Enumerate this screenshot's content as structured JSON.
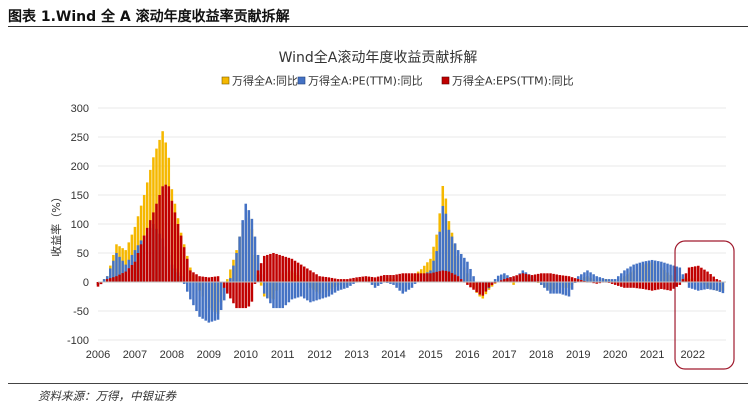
{
  "caption": "图表 1.Wind 全 A 滚动年度收益率贡献拆解",
  "source": "资料来源：万得，中银证券",
  "colors": {
    "total": "#F5B800",
    "pe": "#4472C4",
    "eps": "#C00000",
    "highlight": "#A01B2E"
  },
  "highlight_label": "2022",
  "chart_data": {
    "type": "bar",
    "title": "Wind全A滚动年度收益贡献拆解",
    "xlabel": "",
    "ylabel": "收益率（%）",
    "ylim": [
      -100,
      300
    ],
    "yticks": [
      300,
      250,
      200,
      150,
      100,
      50,
      0,
      -50,
      -100
    ],
    "x_start": 2006,
    "x_end": 2023,
    "xtick_years": [
      "2006",
      "2007",
      "2008",
      "2009",
      "2010",
      "2011",
      "2012",
      "2013",
      "2014",
      "2015",
      "2016",
      "2017",
      "2018",
      "2019",
      "2020",
      "2021"
    ],
    "legend": [
      "万得全A:同比",
      "万得全A:PE(TTM):同比",
      "万得全A:EPS(TTM):同比"
    ],
    "series_keys": [
      "total",
      "pe",
      "eps"
    ],
    "anchors": {
      "total": [
        [
          2006.0,
          -5
        ],
        [
          2006.25,
          10
        ],
        [
          2006.5,
          65
        ],
        [
          2006.75,
          55
        ],
        [
          2007.0,
          95
        ],
        [
          2007.25,
          150
        ],
        [
          2007.5,
          215
        ],
        [
          2007.75,
          260
        ],
        [
          2007.9,
          225
        ],
        [
          2008.0,
          160
        ],
        [
          2008.25,
          85
        ],
        [
          2008.5,
          25
        ],
        [
          2008.75,
          -15
        ],
        [
          2009.0,
          -45
        ],
        [
          2009.25,
          -55
        ],
        [
          2009.5,
          5
        ],
        [
          2009.75,
          55
        ],
        [
          2010.0,
          125
        ],
        [
          2010.15,
          100
        ],
        [
          2010.3,
          20
        ],
        [
          2010.5,
          -25
        ],
        [
          2010.75,
          -30
        ],
        [
          2011.0,
          15
        ],
        [
          2011.25,
          20
        ],
        [
          2011.5,
          8
        ],
        [
          2011.75,
          -10
        ],
        [
          2012.0,
          -20
        ],
        [
          2012.25,
          -15
        ],
        [
          2012.5,
          -5
        ],
        [
          2012.75,
          -5
        ],
        [
          2013.0,
          5
        ],
        [
          2013.25,
          8
        ],
        [
          2013.5,
          -5
        ],
        [
          2013.75,
          8
        ],
        [
          2014.0,
          5
        ],
        [
          2014.25,
          -10
        ],
        [
          2014.5,
          10
        ],
        [
          2014.75,
          22
        ],
        [
          2015.0,
          40
        ],
        [
          2015.2,
          90
        ],
        [
          2015.35,
          175
        ],
        [
          2015.5,
          105
        ],
        [
          2015.75,
          45
        ],
        [
          2016.0,
          15
        ],
        [
          2016.2,
          -15
        ],
        [
          2016.4,
          -30
        ],
        [
          2016.6,
          -12
        ],
        [
          2016.8,
          0
        ],
        [
          2017.0,
          10
        ],
        [
          2017.25,
          -5
        ],
        [
          2017.5,
          15
        ],
        [
          2017.75,
          5
        ],
        [
          2018.0,
          -5
        ],
        [
          2018.25,
          -15
        ],
        [
          2018.5,
          -10
        ],
        [
          2018.75,
          -10
        ],
        [
          2019.0,
          5
        ],
        [
          2019.25,
          10
        ],
        [
          2019.5,
          2
        ],
        [
          2019.75,
          5
        ],
        [
          2020.0,
          0
        ],
        [
          2020.25,
          10
        ],
        [
          2020.5,
          20
        ],
        [
          2020.75,
          30
        ],
        [
          2021.0,
          35
        ],
        [
          2021.25,
          25
        ],
        [
          2021.5,
          12
        ],
        [
          2021.75,
          10
        ],
        [
          2022.0,
          5
        ],
        [
          2022.25,
          8
        ],
        [
          2022.5,
          -10
        ],
        [
          2022.75,
          -15
        ],
        [
          2022.95,
          -15
        ]
      ],
      "pe": [
        [
          2006.0,
          -5
        ],
        [
          2006.25,
          10
        ],
        [
          2006.5,
          50
        ],
        [
          2006.75,
          30
        ],
        [
          2007.0,
          55
        ],
        [
          2007.25,
          80
        ],
        [
          2007.5,
          100
        ],
        [
          2007.75,
          75
        ],
        [
          2007.9,
          50
        ],
        [
          2008.0,
          30
        ],
        [
          2008.25,
          10
        ],
        [
          2008.5,
          -30
        ],
        [
          2008.75,
          -60
        ],
        [
          2009.0,
          -70
        ],
        [
          2009.25,
          -65
        ],
        [
          2009.5,
          -15
        ],
        [
          2009.75,
          50
        ],
        [
          2010.0,
          135
        ],
        [
          2010.15,
          115
        ],
        [
          2010.3,
          60
        ],
        [
          2010.5,
          -20
        ],
        [
          2010.75,
          -45
        ],
        [
          2011.0,
          -45
        ],
        [
          2011.25,
          -30
        ],
        [
          2011.5,
          -25
        ],
        [
          2011.75,
          -35
        ],
        [
          2012.0,
          -30
        ],
        [
          2012.25,
          -25
        ],
        [
          2012.5,
          -15
        ],
        [
          2012.75,
          -10
        ],
        [
          2013.0,
          0
        ],
        [
          2013.25,
          5
        ],
        [
          2013.5,
          -10
        ],
        [
          2013.75,
          0
        ],
        [
          2014.0,
          -5
        ],
        [
          2014.25,
          -20
        ],
        [
          2014.5,
          -10
        ],
        [
          2014.75,
          10
        ],
        [
          2015.0,
          20
        ],
        [
          2015.2,
          60
        ],
        [
          2015.35,
          140
        ],
        [
          2015.5,
          90
        ],
        [
          2015.75,
          55
        ],
        [
          2016.0,
          35
        ],
        [
          2016.2,
          5
        ],
        [
          2016.4,
          -20
        ],
        [
          2016.6,
          -10
        ],
        [
          2016.8,
          10
        ],
        [
          2017.0,
          15
        ],
        [
          2017.25,
          5
        ],
        [
          2017.5,
          20
        ],
        [
          2017.75,
          10
        ],
        [
          2018.0,
          -5
        ],
        [
          2018.25,
          -20
        ],
        [
          2018.5,
          -20
        ],
        [
          2018.75,
          -25
        ],
        [
          2019.0,
          10
        ],
        [
          2019.25,
          20
        ],
        [
          2019.5,
          10
        ],
        [
          2019.75,
          5
        ],
        [
          2020.0,
          5
        ],
        [
          2020.25,
          20
        ],
        [
          2020.5,
          30
        ],
        [
          2020.75,
          35
        ],
        [
          2021.0,
          38
        ],
        [
          2021.25,
          35
        ],
        [
          2021.5,
          30
        ],
        [
          2021.75,
          25
        ],
        [
          2022.0,
          -10
        ],
        [
          2022.25,
          -15
        ],
        [
          2022.5,
          -12
        ],
        [
          2022.75,
          -15
        ],
        [
          2022.95,
          -20
        ]
      ],
      "eps": [
        [
          2006.0,
          -8
        ],
        [
          2006.25,
          5
        ],
        [
          2006.5,
          10
        ],
        [
          2006.75,
          18
        ],
        [
          2007.0,
          35
        ],
        [
          2007.25,
          80
        ],
        [
          2007.5,
          120
        ],
        [
          2007.75,
          165
        ],
        [
          2007.9,
          170
        ],
        [
          2008.0,
          140
        ],
        [
          2008.25,
          80
        ],
        [
          2008.5,
          20
        ],
        [
          2008.75,
          10
        ],
        [
          2009.0,
          8
        ],
        [
          2009.25,
          10
        ],
        [
          2009.5,
          -20
        ],
        [
          2009.75,
          -45
        ],
        [
          2010.0,
          -45
        ],
        [
          2010.15,
          -40
        ],
        [
          2010.3,
          15
        ],
        [
          2010.5,
          45
        ],
        [
          2010.75,
          50
        ],
        [
          2011.0,
          45
        ],
        [
          2011.25,
          40
        ],
        [
          2011.5,
          30
        ],
        [
          2011.75,
          20
        ],
        [
          2012.0,
          10
        ],
        [
          2012.25,
          8
        ],
        [
          2012.5,
          5
        ],
        [
          2012.75,
          5
        ],
        [
          2013.0,
          8
        ],
        [
          2013.25,
          10
        ],
        [
          2013.5,
          8
        ],
        [
          2013.75,
          12
        ],
        [
          2014.0,
          12
        ],
        [
          2014.25,
          15
        ],
        [
          2014.5,
          15
        ],
        [
          2014.75,
          15
        ],
        [
          2015.0,
          15
        ],
        [
          2015.2,
          18
        ],
        [
          2015.35,
          20
        ],
        [
          2015.5,
          18
        ],
        [
          2015.75,
          10
        ],
        [
          2016.0,
          -5
        ],
        [
          2016.2,
          -15
        ],
        [
          2016.4,
          -25
        ],
        [
          2016.6,
          -8
        ],
        [
          2016.8,
          0
        ],
        [
          2017.0,
          5
        ],
        [
          2017.25,
          10
        ],
        [
          2017.5,
          15
        ],
        [
          2017.75,
          12
        ],
        [
          2018.0,
          15
        ],
        [
          2018.25,
          15
        ],
        [
          2018.5,
          12
        ],
        [
          2018.75,
          10
        ],
        [
          2019.0,
          5
        ],
        [
          2019.25,
          0
        ],
        [
          2019.5,
          -3
        ],
        [
          2019.75,
          0
        ],
        [
          2020.0,
          -5
        ],
        [
          2020.25,
          -10
        ],
        [
          2020.5,
          -10
        ],
        [
          2020.75,
          -12
        ],
        [
          2021.0,
          -15
        ],
        [
          2021.25,
          -12
        ],
        [
          2021.5,
          -15
        ],
        [
          2021.75,
          -5
        ],
        [
          2022.0,
          25
        ],
        [
          2022.25,
          28
        ],
        [
          2022.5,
          18
        ],
        [
          2022.75,
          5
        ],
        [
          2022.95,
          0
        ]
      ]
    }
  }
}
